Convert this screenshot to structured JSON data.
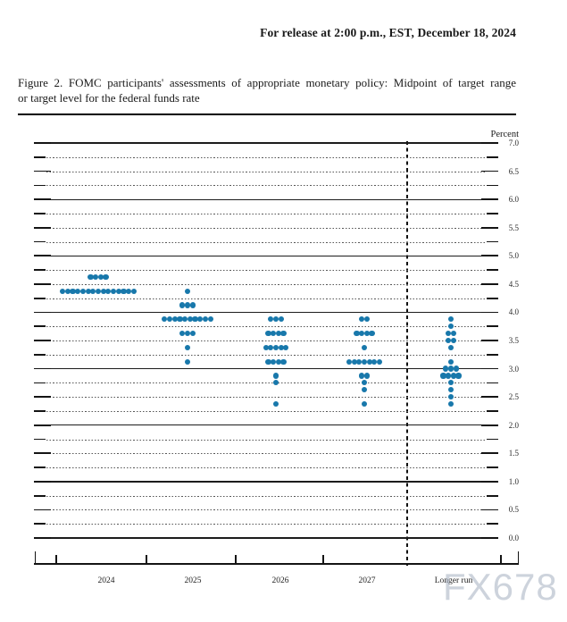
{
  "release_line": "For release at 2:00 p.m., EST, December 18, 2024",
  "figure_caption_line1": "Figure 2.  FOMC participants' assessments of appropriate monetary policy:  Midpoint of target range",
  "figure_caption_line2": "or target level for the federal funds rate",
  "watermark": "FX678",
  "colors": {
    "dot": "#1878ab",
    "grid_solid": "#1c1c1c",
    "grid_dotted": "#575757",
    "watermark": "#a4afc0"
  },
  "chart_data": {
    "type": "scatter",
    "title": "FOMC participants' assessments of appropriate monetary policy: Midpoint of target range or target level for the federal funds rate",
    "ylabel": "Percent",
    "ylim": [
      0.0,
      7.0
    ],
    "y_grid_step": 0.25,
    "y_label_step": 0.5,
    "grid": true,
    "y_tick_labels": [
      "7.0",
      "6.5",
      "6.0",
      "5.5",
      "5.0",
      "4.5",
      "4.0",
      "3.5",
      "3.0",
      "2.5",
      "2.0",
      "1.5",
      "1.0",
      "0.5",
      "0.0"
    ],
    "legend_position": "none",
    "separator_before_column": "Longer run",
    "columns": [
      {
        "label": "2024",
        "dots": [
          {
            "v": 4.625,
            "n": 4
          },
          {
            "v": 4.375,
            "n": 15
          }
        ]
      },
      {
        "label": "2025",
        "dots": [
          {
            "v": 4.375,
            "n": 1
          },
          {
            "v": 4.125,
            "n": 3
          },
          {
            "v": 3.875,
            "n": 10
          },
          {
            "v": 3.625,
            "n": 3
          },
          {
            "v": 3.375,
            "n": 1
          },
          {
            "v": 3.125,
            "n": 1
          }
        ]
      },
      {
        "label": "2026",
        "dots": [
          {
            "v": 3.875,
            "n": 3
          },
          {
            "v": 3.625,
            "n": 4
          },
          {
            "v": 3.375,
            "n": 5
          },
          {
            "v": 3.125,
            "n": 4
          },
          {
            "v": 2.875,
            "n": 1
          },
          {
            "v": 2.75,
            "n": 1
          },
          {
            "v": 2.375,
            "n": 1
          }
        ]
      },
      {
        "label": "2027",
        "dots": [
          {
            "v": 3.875,
            "n": 2
          },
          {
            "v": 3.625,
            "n": 4
          },
          {
            "v": 3.375,
            "n": 1
          },
          {
            "v": 3.125,
            "n": 7
          },
          {
            "v": 2.875,
            "n": 2
          },
          {
            "v": 2.75,
            "n": 1
          },
          {
            "v": 2.625,
            "n": 1
          },
          {
            "v": 2.375,
            "n": 1
          }
        ]
      },
      {
        "label": "Longer run",
        "dots": [
          {
            "v": 3.875,
            "n": 1
          },
          {
            "v": 3.75,
            "n": 1
          },
          {
            "v": 3.625,
            "n": 2
          },
          {
            "v": 3.5,
            "n": 2
          },
          {
            "v": 3.375,
            "n": 1
          },
          {
            "v": 3.125,
            "n": 1
          },
          {
            "v": 3.0,
            "n": 3
          },
          {
            "v": 2.875,
            "n": 4
          },
          {
            "v": 2.75,
            "n": 1
          },
          {
            "v": 2.625,
            "n": 1
          },
          {
            "v": 2.5,
            "n": 1
          },
          {
            "v": 2.375,
            "n": 1
          }
        ]
      }
    ]
  }
}
